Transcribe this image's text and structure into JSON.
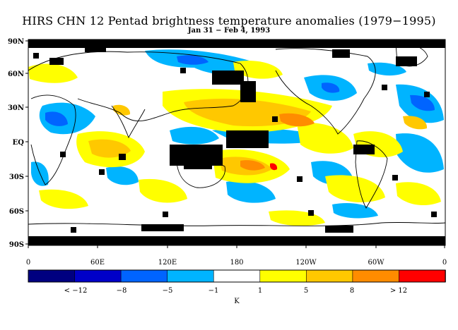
{
  "title": "HIRS CHN 12 Pentad brightness temperature anomalies (1979−1995)",
  "subtitle": "Jan 31 − Feb 4, 1993",
  "lat_labels": [
    "90N",
    "60N",
    "30N",
    "EQ",
    "30S",
    "60S",
    "90S"
  ],
  "lon_labels": [
    "0",
    "60E",
    "120E",
    "180",
    "120W",
    "60W",
    "0"
  ],
  "colorbar": {
    "colors": [
      "#000080",
      "#0000c8",
      "#0064ff",
      "#00b4ff",
      "#ffffff",
      "#ffff00",
      "#ffc800",
      "#ff8c00",
      "#ff0000"
    ],
    "labels": [
      "< −12",
      "−8",
      "−5",
      "−1",
      "1",
      "5",
      "8",
      "> 12"
    ],
    "unit": "K"
  },
  "map": {
    "missing_color": "#000000",
    "projection": "cylindrical equidistant",
    "lat_range": [
      -90,
      90
    ],
    "lon_range": [
      0,
      360
    ]
  }
}
